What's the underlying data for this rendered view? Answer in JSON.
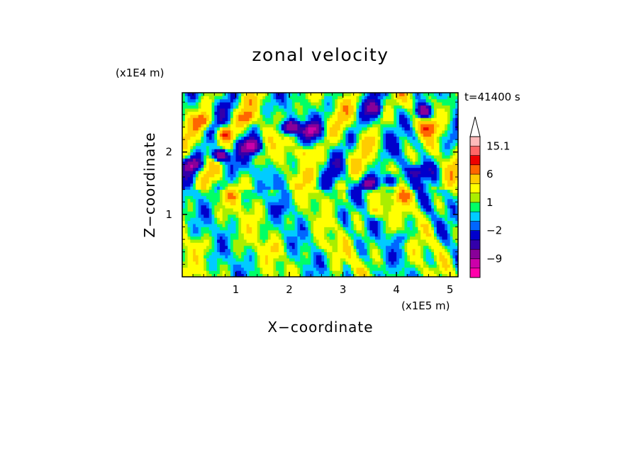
{
  "chart_data": {
    "type": "heatmap",
    "title": "zonal velocity",
    "xlabel": "X−coordinate",
    "ylabel": "Z−coordinate",
    "x_scale_label": "(x1E5 m)",
    "y_scale_label": "(x1E4 m)",
    "time_label": "t=41400 s",
    "xlim": [
      0,
      5.15
    ],
    "ylim": [
      0,
      2.95
    ],
    "x_ticks": [
      1,
      2,
      3,
      4,
      5
    ],
    "x_tick_labels": [
      "1",
      "2",
      "3",
      "4",
      "5"
    ],
    "y_ticks": [
      1,
      2
    ],
    "y_tick_labels": [
      "1",
      "2"
    ],
    "colorbar": {
      "levels": [
        -15,
        -12,
        -9,
        -6,
        -4,
        -2,
        -1,
        0,
        1,
        2,
        4,
        6,
        9,
        12,
        15.1
      ],
      "tick_values": [
        15.1,
        6,
        1,
        -2,
        -9
      ],
      "tick_labels": [
        "15.1",
        "6",
        "1",
        "−2",
        "−9"
      ],
      "colors": [
        "#ff00aa",
        "#cc00aa",
        "#880099",
        "#3300aa",
        "#0000cc",
        "#0066ff",
        "#00ccff",
        "#00ff66",
        "#aaee00",
        "#ffff00",
        "#ffcc00",
        "#ff6600",
        "#ee0000",
        "#ff6666",
        "#ffbbbb"
      ],
      "overflow_color": "#ffffff"
    },
    "field_features": [
      {
        "x": 0.7,
        "z": 1.95,
        "u": -12
      },
      {
        "x": 1.3,
        "z": 2.1,
        "u": -10
      },
      {
        "x": 2.0,
        "z": 2.4,
        "u": -11
      },
      {
        "x": 2.4,
        "z": 2.35,
        "u": -8
      },
      {
        "x": 0.2,
        "z": 1.8,
        "u": -8
      },
      {
        "x": 3.5,
        "z": 1.5,
        "u": -8
      },
      {
        "x": 3.9,
        "z": 1.55,
        "u": -7
      },
      {
        "x": 4.4,
        "z": 1.7,
        "u": -6
      },
      {
        "x": 4.5,
        "z": 2.65,
        "u": -9
      },
      {
        "x": 3.6,
        "z": 2.7,
        "u": -5
      },
      {
        "x": 0.4,
        "z": 2.5,
        "u": 6
      },
      {
        "x": 0.8,
        "z": 2.3,
        "u": 8
      },
      {
        "x": 1.2,
        "z": 2.55,
        "u": 5
      },
      {
        "x": 2.3,
        "z": 2.0,
        "u": 5
      },
      {
        "x": 4.6,
        "z": 2.4,
        "u": 6
      },
      {
        "x": 4.1,
        "z": 1.3,
        "u": 5
      },
      {
        "x": 3.6,
        "z": 1.05,
        "u": 4
      },
      {
        "x": 0.9,
        "z": 1.3,
        "u": 3
      },
      {
        "x": 1.7,
        "z": 0.45,
        "u": 2
      },
      {
        "x": 2.7,
        "z": 0.5,
        "u": 2
      },
      {
        "x": 0.3,
        "z": 0.5,
        "u": 2
      },
      {
        "x": 1.9,
        "z": 1.1,
        "u": -1.5
      },
      {
        "x": 2.9,
        "z": 1.0,
        "u": -1.5
      },
      {
        "x": 4.1,
        "z": 0.65,
        "u": -2.5
      },
      {
        "x": 1.5,
        "z": 1.7,
        "u": -1.5
      }
    ]
  }
}
